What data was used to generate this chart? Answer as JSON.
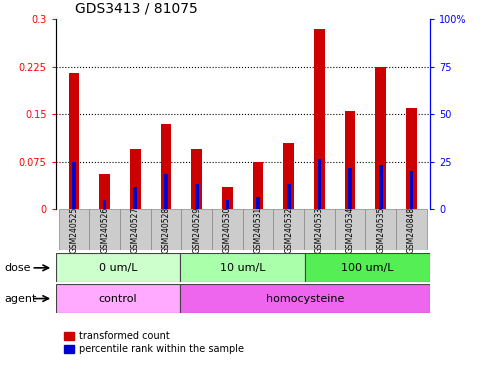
{
  "title": "GDS3413 / 81075",
  "samples": [
    "GSM240525",
    "GSM240526",
    "GSM240527",
    "GSM240528",
    "GSM240529",
    "GSM240530",
    "GSM240531",
    "GSM240532",
    "GSM240533",
    "GSM240534",
    "GSM240535",
    "GSM240848"
  ],
  "red_values": [
    0.215,
    0.055,
    0.095,
    0.135,
    0.095,
    0.035,
    0.075,
    0.105,
    0.285,
    0.155,
    0.225,
    0.16
  ],
  "blue_values": [
    0.075,
    0.015,
    0.035,
    0.055,
    0.04,
    0.015,
    0.02,
    0.04,
    0.08,
    0.065,
    0.07,
    0.06
  ],
  "ylim_left": [
    0,
    0.3
  ],
  "ylim_right": [
    0,
    100
  ],
  "yticks_left": [
    0,
    0.075,
    0.15,
    0.225,
    0.3
  ],
  "yticks_right": [
    0,
    25,
    50,
    75,
    100
  ],
  "ytick_labels_left": [
    "0",
    "0.075",
    "0.15",
    "0.225",
    "0.3"
  ],
  "ytick_labels_right": [
    "0",
    "25",
    "50",
    "75",
    "100%"
  ],
  "hline_positions": [
    0.075,
    0.15,
    0.225
  ],
  "dose_groups": [
    {
      "label": "0 um/L",
      "start": 0,
      "end": 4,
      "color": "#ccffcc"
    },
    {
      "label": "10 um/L",
      "start": 4,
      "end": 8,
      "color": "#aaffaa"
    },
    {
      "label": "100 um/L",
      "start": 8,
      "end": 12,
      "color": "#55ee55"
    }
  ],
  "agent_groups": [
    {
      "label": "control",
      "start": 0,
      "end": 4,
      "color": "#ffaaff"
    },
    {
      "label": "homocysteine",
      "start": 4,
      "end": 12,
      "color": "#ee66ee"
    }
  ],
  "bar_color_red": "#cc0000",
  "bar_color_blue": "#0000cc",
  "red_bar_width": 0.35,
  "blue_bar_width": 0.12,
  "bg_color": "#ffffff",
  "gray_box_color": "#cccccc",
  "legend_red": "transformed count",
  "legend_blue": "percentile rank within the sample",
  "dose_label": "dose",
  "agent_label": "agent",
  "title_fontsize": 10,
  "axis_label_fontsize": 7,
  "sample_label_fontsize": 5.5,
  "group_label_fontsize": 8,
  "legend_fontsize": 7
}
